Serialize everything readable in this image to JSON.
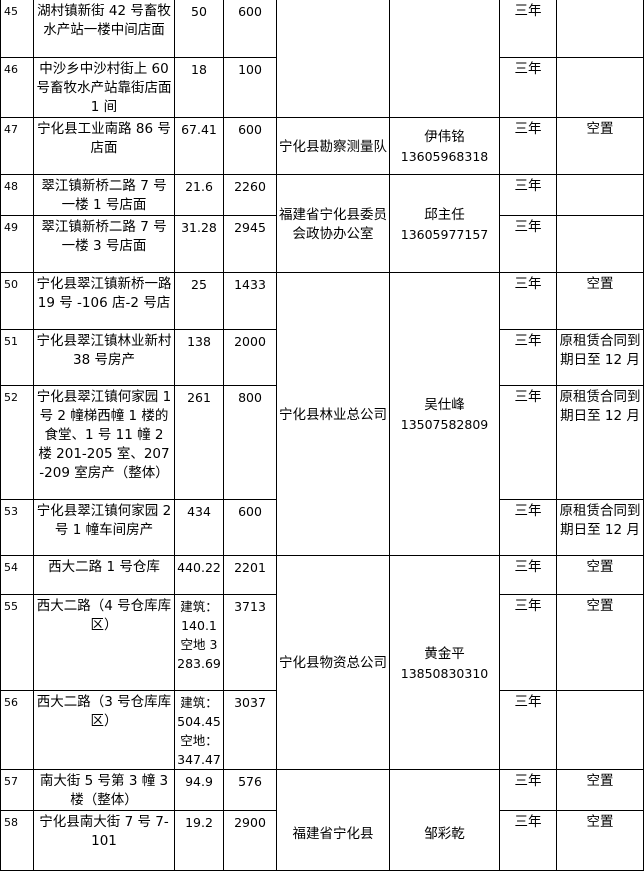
{
  "rows": [
    {
      "no": "45",
      "address": "湖村镇新街 42 号畜牧水产站一楼中间店面",
      "area": "50",
      "rent": "600",
      "term": "三年",
      "status": ""
    },
    {
      "no": "46",
      "address": "中沙乡中沙村街上 60 号畜牧水产站靠街店面 1 间",
      "area": "18",
      "rent": "100",
      "term": "三年",
      "status": ""
    },
    {
      "no": "47",
      "address": "宁化县工业南路 86 号店面",
      "area": "67.41",
      "rent": "600",
      "term": "三年",
      "status": "空置"
    },
    {
      "no": "48",
      "address": "翠江镇新桥二路 7 号一楼 1 号店面",
      "area": "21.6",
      "rent": "2260",
      "term": "三年",
      "status": ""
    },
    {
      "no": "49",
      "address": "翠江镇新桥二路 7 号一楼 3 号店面",
      "area": "31.28",
      "rent": "2945",
      "term": "三年",
      "status": ""
    },
    {
      "no": "50",
      "address": "宁化县翠江镇新桥一路 19 号 -106 店-2 号店",
      "area": "25",
      "rent": "1433",
      "term": "三年",
      "status": "空置"
    },
    {
      "no": "51",
      "address": "宁化县翠江镇林业新村 38 号房产",
      "area": "138",
      "rent": "2000",
      "term": "三年",
      "status": "原租赁合同到期日至 12 月"
    },
    {
      "no": "52",
      "address": "宁化县翠江镇何家园 1 号 2 幢梯西幢 1 楼的食堂、1 号 11 幢 2 楼 201-205 室、207-209 室房产（整体）",
      "area": "261",
      "rent": "800",
      "term": "三年",
      "status": "原租赁合同到期日至 12 月"
    },
    {
      "no": "53",
      "address": "宁化县翠江镇何家园 2 号 1 幢车间房产",
      "area": "434",
      "rent": "600",
      "term": "三年",
      "status": "原租赁合同到期日至 12 月"
    },
    {
      "no": "54",
      "address": "西大二路 1 号仓库",
      "area": "440.22",
      "rent": "2201",
      "term": "三年",
      "status": "空置"
    },
    {
      "no": "55",
      "address": "西大二路（4 号仓库库区）",
      "area": "建筑：140.1 空地 3283.69",
      "rent": "3713",
      "term": "三年",
      "status": "空置"
    },
    {
      "no": "56",
      "address": "西大二路（3 号仓库库区）",
      "area": "建筑：504.45 空地：347.47",
      "rent": "3037",
      "term": "三年",
      "status": ""
    },
    {
      "no": "57",
      "address": "南大街 5 号第 3 幢 3 楼（整体）",
      "area": "94.9",
      "rent": "576",
      "term": "三年",
      "status": "空置"
    },
    {
      "no": "58",
      "address": "宁化县南大街 7 号 7-101",
      "area": "19.2",
      "rent": "2900",
      "term": "三年",
      "status": "空置"
    }
  ],
  "groups": [
    {
      "unit": "",
      "contact_name": "",
      "contact_phone": ""
    },
    {
      "unit": "宁化县勘察测量队",
      "contact_name": "伊伟铭",
      "contact_phone": "13605968318"
    },
    {
      "unit": "福建省宁化县委员会政协办公室",
      "contact_name": "邱主任",
      "contact_phone": "13605977157"
    },
    {
      "unit": "宁化县林业总公司",
      "contact_name": "吴仕峰",
      "contact_phone": "13507582809"
    },
    {
      "unit": "宁化县物资总公司",
      "contact_name": "黄金平",
      "contact_phone": "13850830310"
    },
    {
      "unit": "福建省宁化县",
      "contact_name": "邹彩乾",
      "contact_phone": ""
    }
  ]
}
